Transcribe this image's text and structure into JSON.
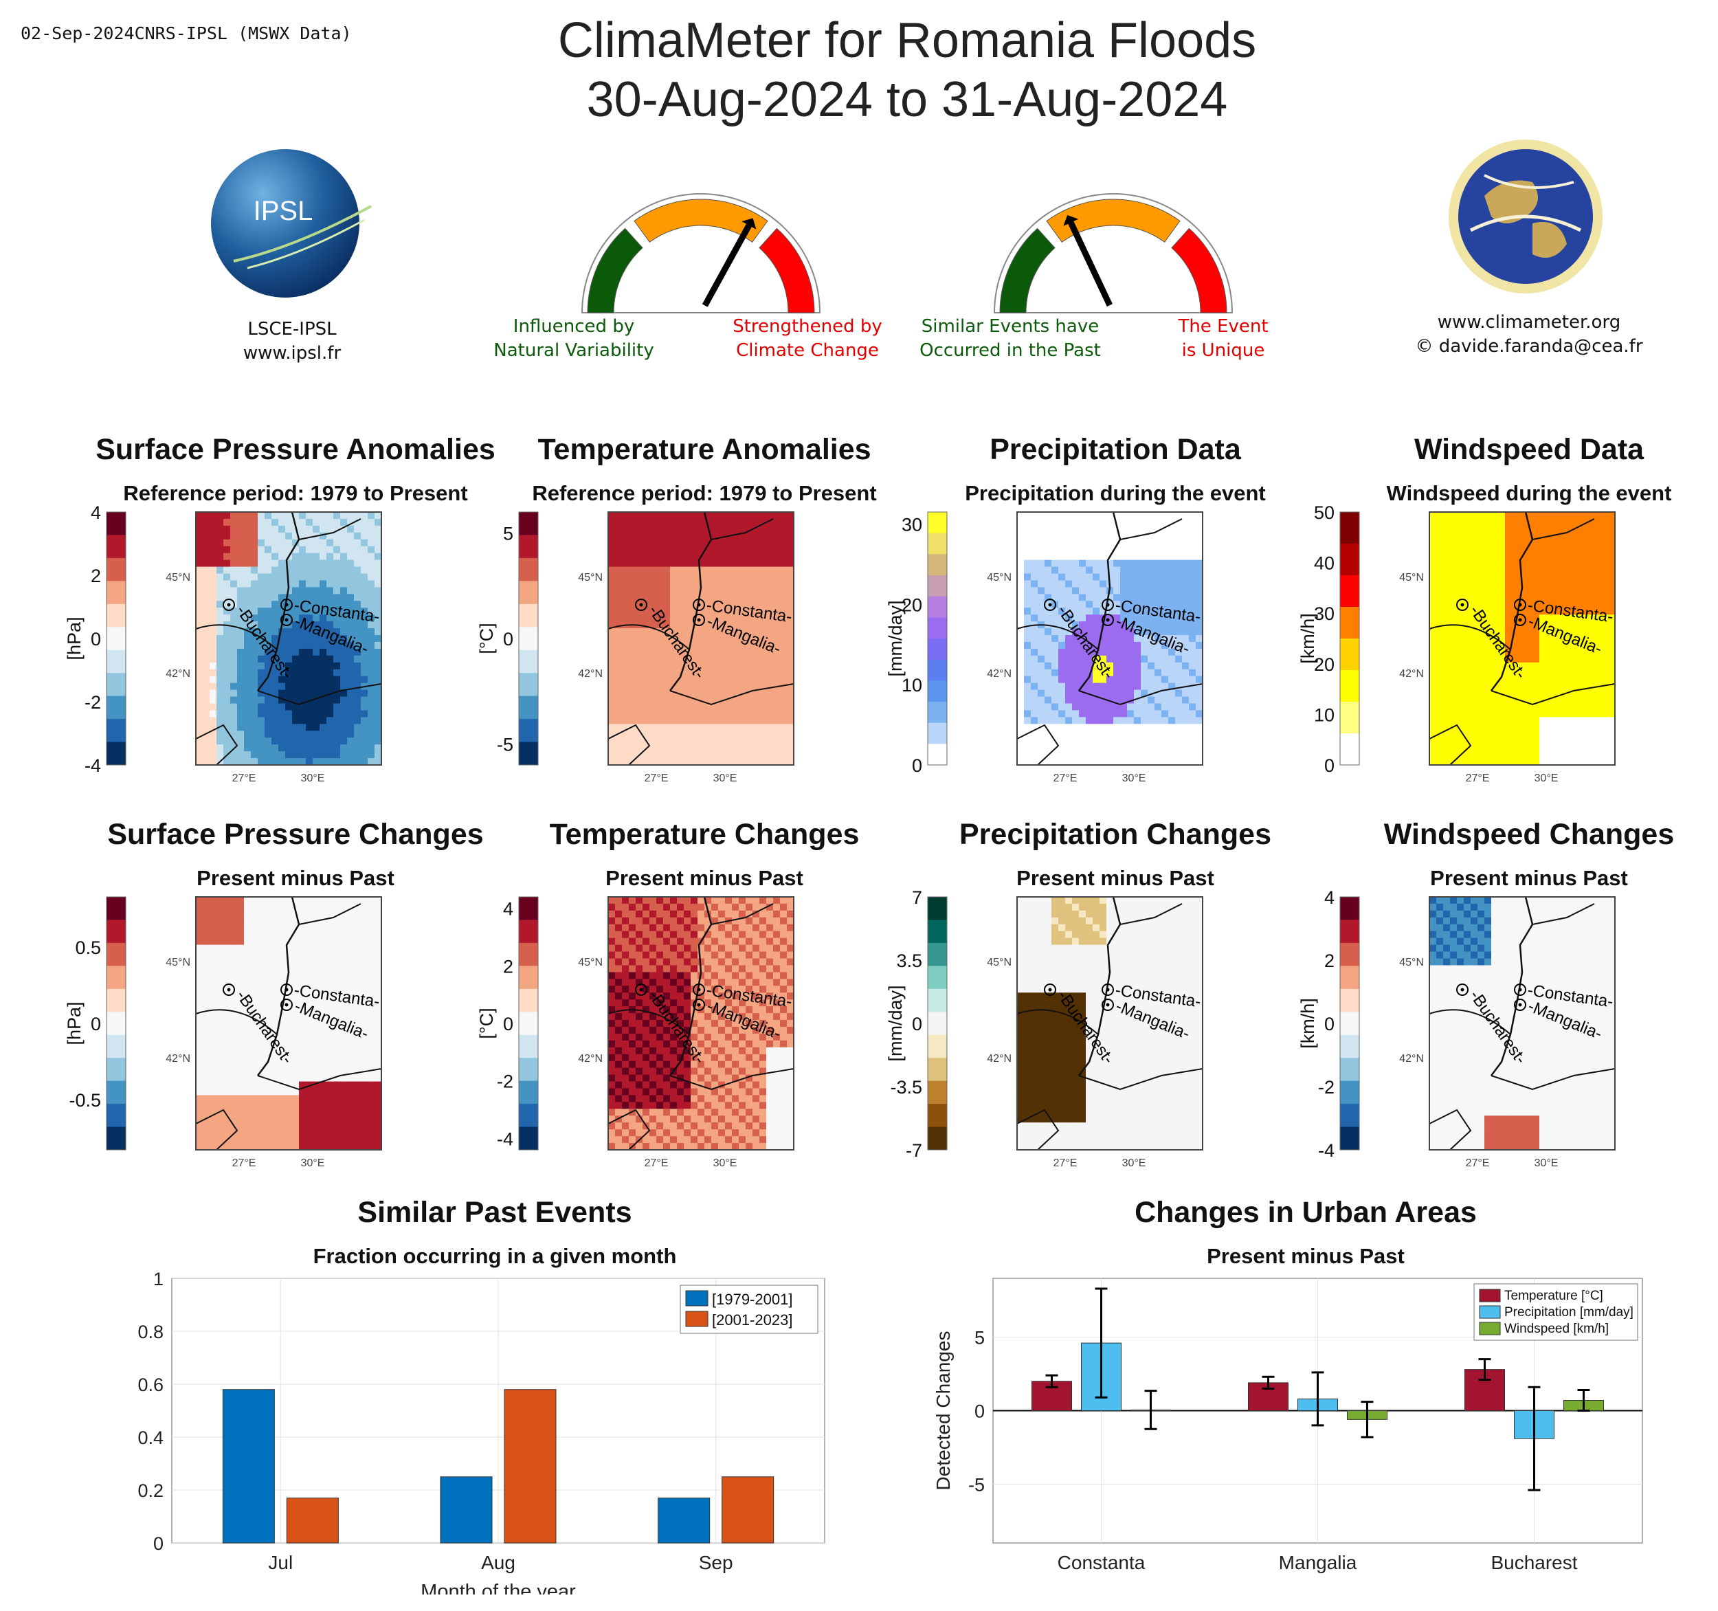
{
  "header": {
    "date_source": "02-Sep-2024CNRS-IPSL (MSWX Data)",
    "title_line1": "ClimaMeter for Romania Floods",
    "title_line2": "30-Aug-2024 to 31-Aug-2024"
  },
  "logos": {
    "left": {
      "text": "IPSL",
      "caption1": "LSCE-IPSL",
      "caption2": "www.ipsl.fr"
    },
    "right": {
      "caption1": "www.climameter.org",
      "caption2": "© davide.faranda@cea.fr"
    }
  },
  "gauges": [
    {
      "left_label1": "Influenced by",
      "left_label2": "Natural Variability",
      "right_label1": "Strengthened by",
      "right_label2": "Climate Change",
      "needle_fraction": 0.66,
      "left_color": "#0a5a0a",
      "right_color": "#e00000"
    },
    {
      "left_label1": "Similar Events have",
      "left_label2": "Occurred in the Past",
      "right_label1": "The Event",
      "right_label2": "is Unique",
      "needle_fraction": 0.36,
      "left_color": "#0a5a0a",
      "right_color": "#e00000"
    }
  ],
  "colors": {
    "gauge_green": "#0a5a0a",
    "gauge_orange": "#ff9a00",
    "gauge_red": "#ff0000",
    "bar_blue": "#0072bd",
    "bar_orange": "#d95319",
    "urban_temp": "#a2142f",
    "urban_precip": "#4dbeee",
    "urban_wind": "#77ac30"
  },
  "map_labels": {
    "lat1": "45°N",
    "lat2": "42°N",
    "lon1": "27°E",
    "lon2": "30°E",
    "city1": "Constanta",
    "city2": "Mangalia",
    "city3": "Bucharest"
  },
  "panels": [
    {
      "title": "Surface Pressure Anomalies",
      "subtitle": "Reference period: 1979 to Present",
      "unit": "[hPa]",
      "ticks": [
        "4",
        "2",
        "0",
        "-2",
        "-4"
      ],
      "scheme": "rdbu",
      "fill": "pressure_anom"
    },
    {
      "title": "Temperature Anomalies",
      "subtitle": "Reference period: 1979 to Present",
      "unit": "[°C]",
      "ticks": [
        "5",
        "0",
        "-5"
      ],
      "scheme": "rdbu",
      "fill": "temp_anom"
    },
    {
      "title": "Precipitation Data",
      "subtitle": "Precipitation during the event",
      "unit": "[mm/day]",
      "ticks": [
        "30",
        "20",
        "10",
        "0"
      ],
      "scheme": "precip",
      "fill": "precip"
    },
    {
      "title": "Windspeed Data",
      "subtitle": "Windspeed during the event",
      "unit": "[km/h]",
      "ticks": [
        "50",
        "40",
        "30",
        "20",
        "10",
        "0"
      ],
      "scheme": "wind",
      "fill": "wind"
    },
    {
      "title": "Surface Pressure Changes",
      "subtitle": "Present minus Past",
      "unit": "[hPa]",
      "ticks": [
        "0.5",
        "0",
        "-0.5"
      ],
      "scheme": "rdbu",
      "fill": "pressure_chg"
    },
    {
      "title": "Temperature Changes",
      "subtitle": "Present minus Past",
      "unit": "[°C]",
      "ticks": [
        "4",
        "2",
        "0",
        "-2",
        "-4"
      ],
      "scheme": "rdbu",
      "fill": "temp_chg"
    },
    {
      "title": "Precipitation Changes",
      "subtitle": "Present minus Past",
      "unit": "[mm/day]",
      "ticks": [
        "7",
        "3.5",
        "0",
        "-3.5",
        "-7"
      ],
      "scheme": "brbg",
      "fill": "precip_chg"
    },
    {
      "title": "Windspeed Changes",
      "subtitle": "Present minus Past",
      "unit": "[km/h]",
      "ticks": [
        "4",
        "2",
        "0",
        "-2",
        "-4"
      ],
      "scheme": "rdbu",
      "fill": "wind_chg"
    }
  ],
  "chart_data": [
    {
      "type": "bar",
      "title": "Similar Past Events",
      "subtitle": "Fraction occurring in a given month",
      "xlabel": "Month of the year",
      "ylabel": "",
      "categories": [
        "Jul",
        "Aug",
        "Sep"
      ],
      "series": [
        {
          "name": "[1979-2001]",
          "values": [
            0.58,
            0.25,
            0.17
          ]
        },
        {
          "name": "[2001-2023]",
          "values": [
            0.17,
            0.58,
            0.25
          ]
        }
      ],
      "ylim": [
        0,
        1
      ],
      "yticks": [
        "0",
        "0.2",
        "0.4",
        "0.6",
        "0.8",
        "1"
      ],
      "legend": "top-right",
      "grid": true
    },
    {
      "type": "bar",
      "title": "Changes in Urban Areas",
      "subtitle": "Present minus Past",
      "xlabel": "",
      "ylabel": "Detected Changes",
      "categories": [
        "Constanta",
        "Mangalia",
        "Bucharest"
      ],
      "series": [
        {
          "name": "Temperature [°C]",
          "values": [
            2.0,
            1.9,
            2.8
          ],
          "err": [
            0.4,
            0.4,
            0.7
          ]
        },
        {
          "name": "Precipitation [mm/day]",
          "values": [
            4.6,
            0.8,
            -1.9
          ],
          "err": [
            3.7,
            1.8,
            3.5
          ]
        },
        {
          "name": "Windspeed [km/h]",
          "values": [
            0.05,
            -0.6,
            0.7
          ],
          "err": [
            1.3,
            1.2,
            0.7
          ]
        }
      ],
      "ylim": [
        -9,
        9
      ],
      "yticks": [
        "-5",
        "0",
        "5"
      ],
      "legend": "top-right",
      "grid": true
    }
  ]
}
